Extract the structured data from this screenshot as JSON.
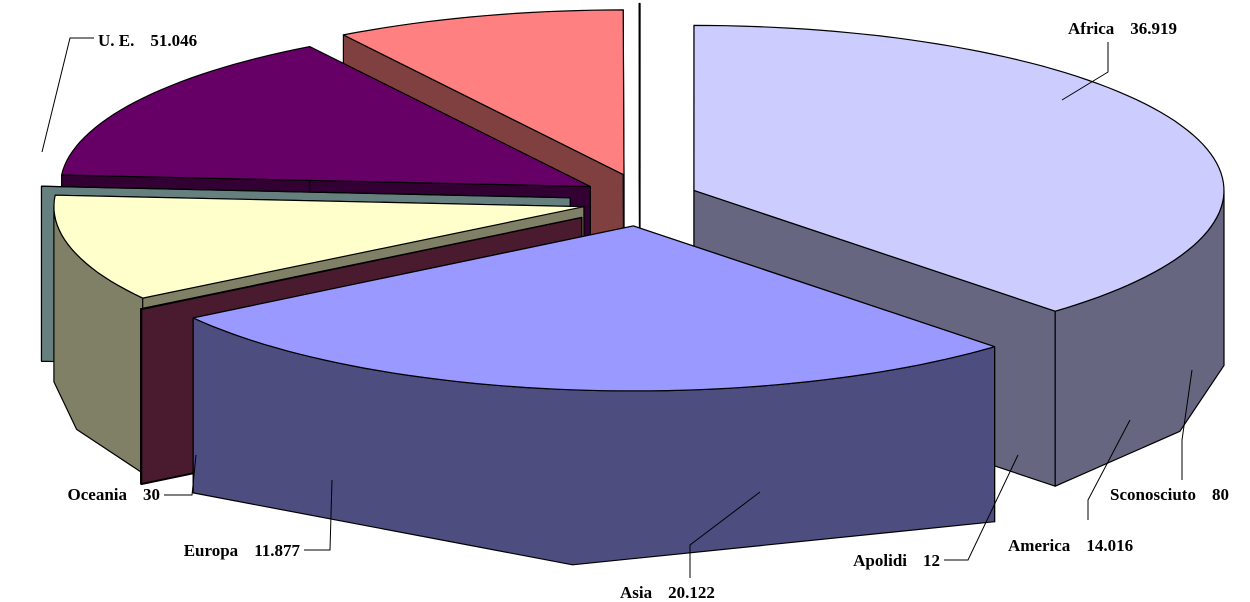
{
  "chart_data": {
    "type": "pie",
    "style": "3d-exploded",
    "title": "",
    "series": [
      {
        "name": "U. E.",
        "value": 51046,
        "display": "51.046",
        "top_color": "#CCCCFF",
        "side_color": "#666680"
      },
      {
        "name": "Africa",
        "value": 36919,
        "display": "36.919",
        "top_color": "#9999FF",
        "side_color": "#4D4D80"
      },
      {
        "name": "Sconosciuto",
        "value": 80,
        "display": "80",
        "top_color": "#660033",
        "side_color": "#4A1A2E"
      },
      {
        "name": "America",
        "value": 14016,
        "display": "14.016",
        "top_color": "#FFFFCC",
        "side_color": "#808066"
      },
      {
        "name": "Apolidi",
        "value": 12,
        "display": "12",
        "top_color": "#99CCCC",
        "side_color": "#668080"
      },
      {
        "name": "Asia",
        "value": 20122,
        "display": "20.122",
        "top_color": "#660066",
        "side_color": "#330033"
      },
      {
        "name": "Europa",
        "value": 11877,
        "display": "11.877",
        "top_color": "#FF8080",
        "side_color": "#804040"
      },
      {
        "name": "Oceania",
        "value": 30,
        "display": "30",
        "top_color": "#003366",
        "side_color": "#003366"
      }
    ]
  }
}
